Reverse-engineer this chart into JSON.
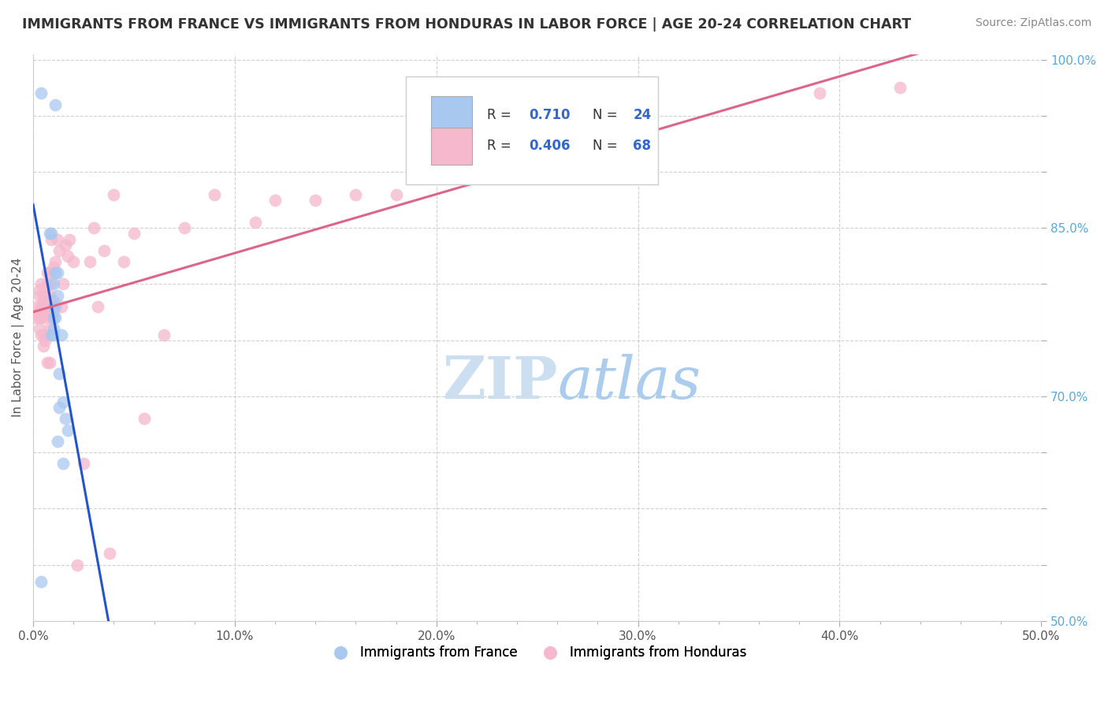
{
  "title": "IMMIGRANTS FROM FRANCE VS IMMIGRANTS FROM HONDURAS IN LABOR FORCE | AGE 20-24 CORRELATION CHART",
  "source": "Source: ZipAtlas.com",
  "ylabel": "In Labor Force | Age 20-24",
  "xlim": [
    0.0,
    0.5
  ],
  "ylim": [
    0.5,
    1.005
  ],
  "xtick_vals": [
    0.0,
    0.1,
    0.2,
    0.3,
    0.4,
    0.5
  ],
  "xtick_labels": [
    "0.0%",
    "10.0%",
    "20.0%",
    "30.0%",
    "40.0%",
    "50.0%"
  ],
  "ytick_vals": [
    0.5,
    0.55,
    0.6,
    0.65,
    0.7,
    0.75,
    0.8,
    0.85,
    0.9,
    0.95,
    1.0
  ],
  "ytick_labels": [
    "50.0%",
    "",
    "",
    "",
    "70.0%",
    "",
    "",
    "85.0%",
    "",
    "",
    "100.0%"
  ],
  "france_color": "#a8c8f0",
  "honduras_color": "#f5b8cc",
  "france_line_color": "#2255cc",
  "honduras_line_color": "#dd6688",
  "background_color": "#ffffff",
  "grid_color": "#cccccc",
  "france_R": "0.710",
  "france_N": "24",
  "honduras_R": "0.406",
  "honduras_N": "68",
  "legend_bottom_france": "Immigrants from France",
  "legend_bottom_honduras": "Immigrants from Honduras",
  "france_x": [
    0.004,
    0.008,
    0.009,
    0.009,
    0.01,
    0.01,
    0.01,
    0.01,
    0.01,
    0.011,
    0.011,
    0.011,
    0.011,
    0.012,
    0.012,
    0.012,
    0.013,
    0.013,
    0.014,
    0.015,
    0.015,
    0.016,
    0.017,
    0.004
  ],
  "france_y": [
    0.535,
    0.845,
    0.845,
    0.755,
    0.755,
    0.77,
    0.78,
    0.8,
    0.76,
    0.96,
    0.77,
    0.78,
    0.81,
    0.79,
    0.81,
    0.66,
    0.69,
    0.72,
    0.755,
    0.64,
    0.695,
    0.68,
    0.67,
    0.97
  ],
  "honduras_x": [
    0.001,
    0.002,
    0.002,
    0.003,
    0.003,
    0.003,
    0.003,
    0.003,
    0.004,
    0.004,
    0.004,
    0.004,
    0.004,
    0.005,
    0.005,
    0.005,
    0.005,
    0.006,
    0.006,
    0.006,
    0.006,
    0.006,
    0.007,
    0.007,
    0.007,
    0.007,
    0.008,
    0.008,
    0.008,
    0.008,
    0.009,
    0.009,
    0.009,
    0.009,
    0.01,
    0.01,
    0.01,
    0.011,
    0.012,
    0.013,
    0.014,
    0.015,
    0.016,
    0.017,
    0.018,
    0.02,
    0.022,
    0.025,
    0.028,
    0.03,
    0.032,
    0.035,
    0.038,
    0.04,
    0.045,
    0.05,
    0.055,
    0.065,
    0.075,
    0.09,
    0.11,
    0.12,
    0.14,
    0.16,
    0.18,
    0.2,
    0.39,
    0.43
  ],
  "honduras_y": [
    0.77,
    0.78,
    0.775,
    0.775,
    0.795,
    0.76,
    0.77,
    0.79,
    0.77,
    0.78,
    0.755,
    0.775,
    0.8,
    0.745,
    0.79,
    0.755,
    0.785,
    0.755,
    0.77,
    0.79,
    0.75,
    0.78,
    0.73,
    0.8,
    0.78,
    0.81,
    0.73,
    0.79,
    0.76,
    0.81,
    0.785,
    0.84,
    0.77,
    0.8,
    0.775,
    0.785,
    0.815,
    0.82,
    0.84,
    0.83,
    0.78,
    0.8,
    0.835,
    0.825,
    0.84,
    0.82,
    0.55,
    0.64,
    0.82,
    0.85,
    0.78,
    0.83,
    0.56,
    0.88,
    0.82,
    0.845,
    0.68,
    0.755,
    0.85,
    0.88,
    0.855,
    0.875,
    0.875,
    0.88,
    0.88,
    0.9,
    0.97,
    0.975
  ]
}
